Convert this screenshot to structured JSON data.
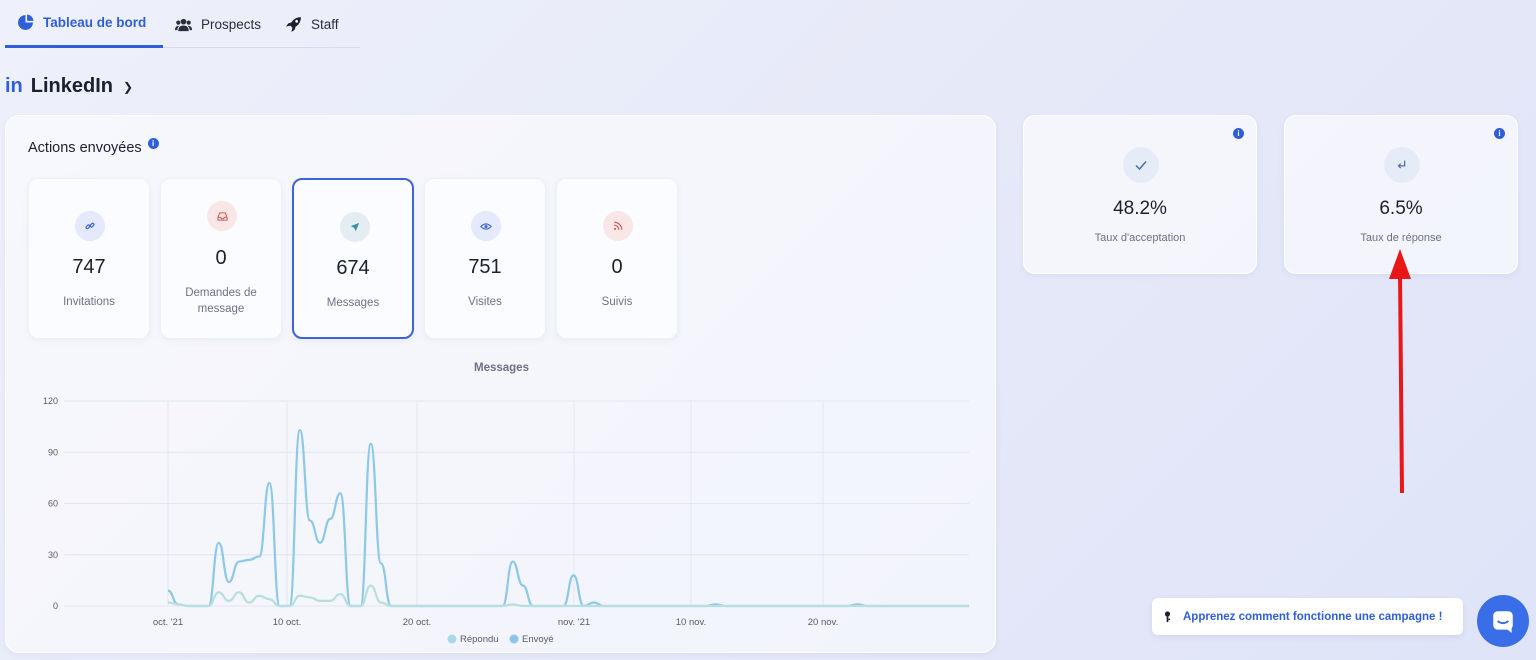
{
  "tabs": [
    {
      "label": "Tableau de bord",
      "icon": "pie-chart-icon",
      "active": true
    },
    {
      "label": "Prospects",
      "icon": "users-icon",
      "active": false
    },
    {
      "label": "Staff",
      "icon": "rocket-icon",
      "active": false
    }
  ],
  "network": {
    "badge": "in",
    "name": "LinkedIn"
  },
  "actions": {
    "title": "Actions envoyées",
    "cards": [
      {
        "value": "747",
        "label": "Invitations",
        "icon": "link-icon",
        "color": "#3d63d8"
      },
      {
        "value": "0",
        "label": "Demandes de message",
        "icon": "inbox-icon",
        "color": "#d05a5a"
      },
      {
        "value": "674",
        "label": "Messages",
        "icon": "send-icon",
        "color": "#3a8fa0"
      },
      {
        "value": "751",
        "label": "Visites",
        "icon": "eye-icon",
        "color": "#3d63d8"
      },
      {
        "value": "0",
        "label": "Suivis",
        "icon": "rss-icon",
        "color": "#d05a5a"
      }
    ]
  },
  "chart_data": {
    "type": "line",
    "title": "Messages",
    "y_ticks": [
      "120",
      "90",
      "60",
      "30",
      "0"
    ],
    "ylim": [
      0,
      120
    ],
    "x_ticks": [
      "oct. '21",
      "10 oct.",
      "20 oct.",
      "nov. '21",
      "10 nov.",
      "20 nov."
    ],
    "legend": [
      {
        "name": "Répondu",
        "color": "#a9d8ea"
      },
      {
        "name": "Envoyé",
        "color": "#8cc5ea"
      }
    ],
    "series": [
      {
        "name": "Envoyé",
        "values": [
          9,
          1,
          0,
          0,
          0,
          37,
          14,
          26,
          27,
          29,
          72,
          0,
          0,
          103,
          50,
          37,
          51,
          66,
          0,
          0,
          95,
          25,
          0,
          0,
          0,
          0,
          0,
          0,
          0,
          0,
          0,
          0,
          0,
          0,
          26,
          12,
          0,
          0,
          0,
          0,
          18,
          0,
          2,
          0,
          0,
          0,
          0,
          0,
          0,
          0,
          0,
          0,
          0,
          0,
          1,
          0,
          0,
          0,
          0,
          0,
          0,
          0,
          0,
          0,
          0,
          0,
          0,
          0,
          1,
          0,
          0,
          0,
          0,
          0,
          0,
          0,
          0,
          0,
          0,
          0
        ]
      },
      {
        "name": "Répondu",
        "values": [
          2,
          1,
          0,
          0,
          0,
          8,
          3,
          8,
          2,
          6,
          4,
          0,
          0,
          6,
          5,
          3,
          3,
          7,
          0,
          0,
          12,
          2,
          0,
          0,
          0,
          0,
          0,
          0,
          0,
          0,
          0,
          0,
          0,
          0,
          1,
          0,
          0,
          0,
          0,
          0,
          0,
          0,
          0,
          0,
          0,
          0,
          0,
          0,
          0,
          0,
          0,
          0,
          0,
          0,
          0,
          0,
          0,
          0,
          0,
          0,
          0,
          0,
          0,
          0,
          0,
          0,
          0,
          0,
          0,
          0,
          0,
          0,
          0,
          0,
          0,
          0,
          0,
          0,
          0,
          0
        ]
      }
    ]
  },
  "kpis": [
    {
      "value": "48.2%",
      "label": "Taux d'acceptation",
      "icon": "check-icon"
    },
    {
      "value": "6.5%",
      "label": "Taux de réponse",
      "icon": "reply-icon"
    }
  ],
  "help": {
    "label": "Apprenez comment fonctionne une campagne !",
    "icon": "key-icon"
  },
  "chat": {
    "icon": "chat-icon"
  }
}
